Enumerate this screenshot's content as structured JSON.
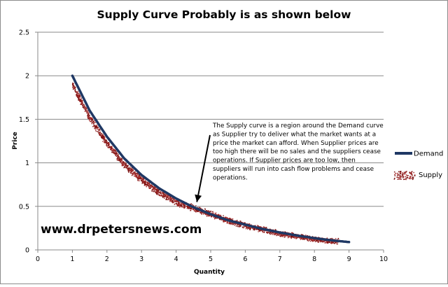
{
  "chart_data": {
    "type": "line",
    "title": "Supply Curve Probably is as shown below",
    "xlabel": "Quantity",
    "ylabel": "Price",
    "xlim": [
      0,
      10
    ],
    "ylim": [
      0,
      2.5
    ],
    "x_ticks": [
      "0",
      "1",
      "2",
      "3",
      "4",
      "5",
      "6",
      "7",
      "8",
      "9",
      "10"
    ],
    "y_ticks": [
      "0",
      "0.5",
      "1",
      "1.5",
      "2",
      "2.5"
    ],
    "grid": "horizontal",
    "legend_position": "right",
    "series": [
      {
        "name": "Demand",
        "kind": "line",
        "color": "#1f3864",
        "x": [
          1,
          1.5,
          2,
          2.5,
          3,
          3.5,
          4,
          4.5,
          5,
          5.5,
          6,
          6.5,
          7,
          7.5,
          8,
          8.5,
          9
        ],
        "values": [
          2.0,
          1.6,
          1.3,
          1.05,
          0.86,
          0.71,
          0.59,
          0.49,
          0.41,
          0.34,
          0.29,
          0.24,
          0.2,
          0.165,
          0.135,
          0.11,
          0.09
        ]
      },
      {
        "name": "Supply",
        "kind": "scatter-band",
        "color": "#a52a2a",
        "x": [
          1,
          1.5,
          2,
          2.5,
          3,
          3.5,
          4,
          4.5,
          5,
          5.5,
          6,
          6.5,
          7,
          7.5,
          8,
          8.5,
          8.7
        ],
        "values": [
          1.9,
          1.52,
          1.22,
          0.98,
          0.8,
          0.66,
          0.55,
          0.48,
          0.41,
          0.34,
          0.28,
          0.235,
          0.19,
          0.155,
          0.125,
          0.1,
          0.1
        ]
      }
    ],
    "annotation": {
      "lines": [
        "The Supply curve is a region around the Demand curve",
        "as Supplier try to deliver what the market wants at a",
        "price the market can afford. When Supplier prices are",
        "too high there will be no sales and the suppliers cease",
        "operations. If Supplier prices are too low, then",
        "suppliers will run into cash flow problems and cease",
        "operations."
      ],
      "arrow_target": [
        4.6,
        0.55
      ]
    },
    "watermark": "www.drpetersnews.com"
  }
}
